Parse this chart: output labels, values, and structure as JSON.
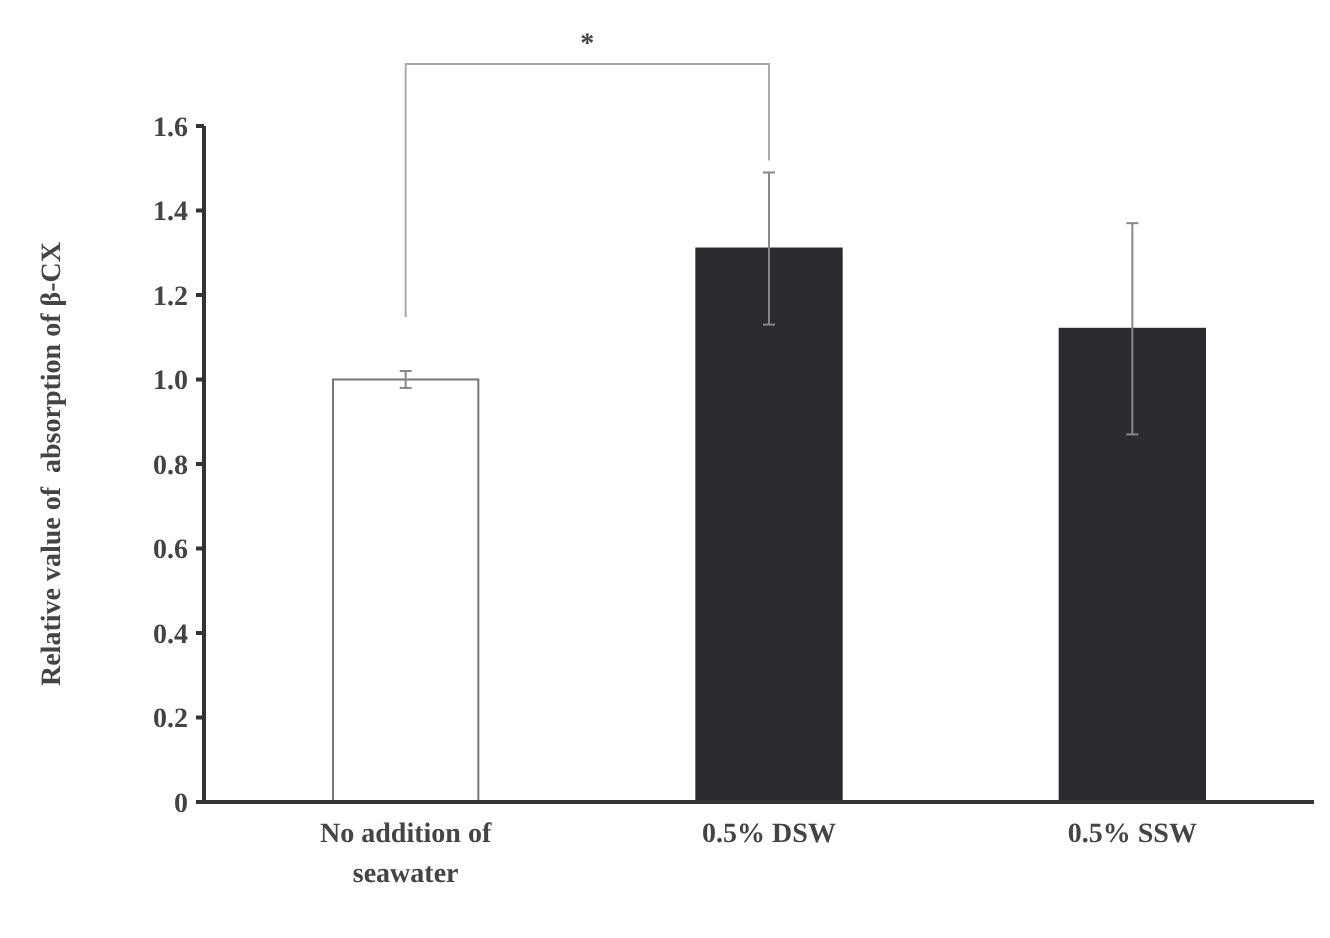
{
  "chart_data": {
    "type": "bar",
    "ylabel": "Relative value of  absorption of β-CX",
    "categories": [
      "No addition of seawater",
      "0.5% DSW",
      "0.5% SSW"
    ],
    "values": [
      1.0,
      1.31,
      1.12
    ],
    "colors": [
      "#ffffff",
      "#2b2b30",
      "#2b2b30"
    ],
    "errors": [
      0.02,
      0.18,
      0.25
    ],
    "ylim": [
      0,
      1.6
    ],
    "yticks": [
      0,
      {
        "value": 0.2,
        "label": "0.2"
      },
      {
        "value": 0.4,
        "label": "0.4"
      },
      {
        "value": 0.6,
        "label": "0.6"
      },
      {
        "value": 0.8,
        "label": "0.8"
      },
      {
        "value": 1.0,
        "label": "1.0"
      },
      {
        "value": 1.2,
        "label": "1.2"
      },
      {
        "value": 1.4,
        "label": "1.4"
      },
      {
        "value": 1.6,
        "label": "1.6"
      }
    ],
    "grid": false,
    "annotations": [
      "*"
    ]
  }
}
